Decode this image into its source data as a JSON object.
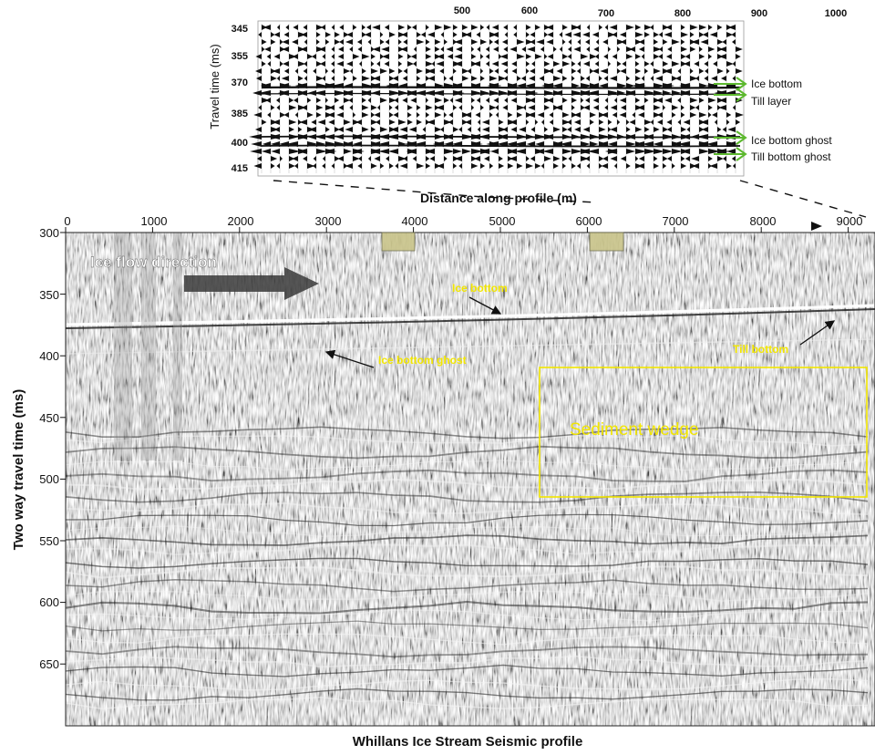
{
  "inset": {
    "y_label": "Travel time (ms)",
    "x_ticks": [
      "500",
      "600",
      "700",
      "800",
      "900",
      "1000"
    ],
    "y_ticks": [
      "345",
      "355",
      "370",
      "385",
      "400",
      "415"
    ],
    "labels": [
      "Ice bottom",
      "Till layer",
      "Ice  bottom ghost",
      "Till bottom ghost"
    ],
    "arrow_color": "#5cb82e"
  },
  "main": {
    "x_label": "Distance along profile (m)",
    "y_label": "Two way travel time (ms)",
    "title": "Whillans Ice Stream Seismic profile",
    "x_ticks": [
      "0",
      "1000",
      "2000",
      "3000",
      "4000",
      "5000",
      "6000",
      "7000",
      "8000",
      "9000"
    ],
    "y_ticks": [
      "300",
      "350",
      "400",
      "450",
      "500",
      "550",
      "600",
      "650"
    ],
    "flow_label": "Ice flow direction",
    "ann": {
      "ice_bottom": "Ice bottom",
      "ice_bottom_ghost": "Ice bottom ghost",
      "till_bottom": "Till bottom",
      "sediment_wedge": "Sediment wedge"
    },
    "annotation_color": "#f2e600",
    "marker_color": "#c9c48a",
    "x_range": [
      0,
      9300
    ],
    "y_range": [
      300,
      700
    ]
  }
}
